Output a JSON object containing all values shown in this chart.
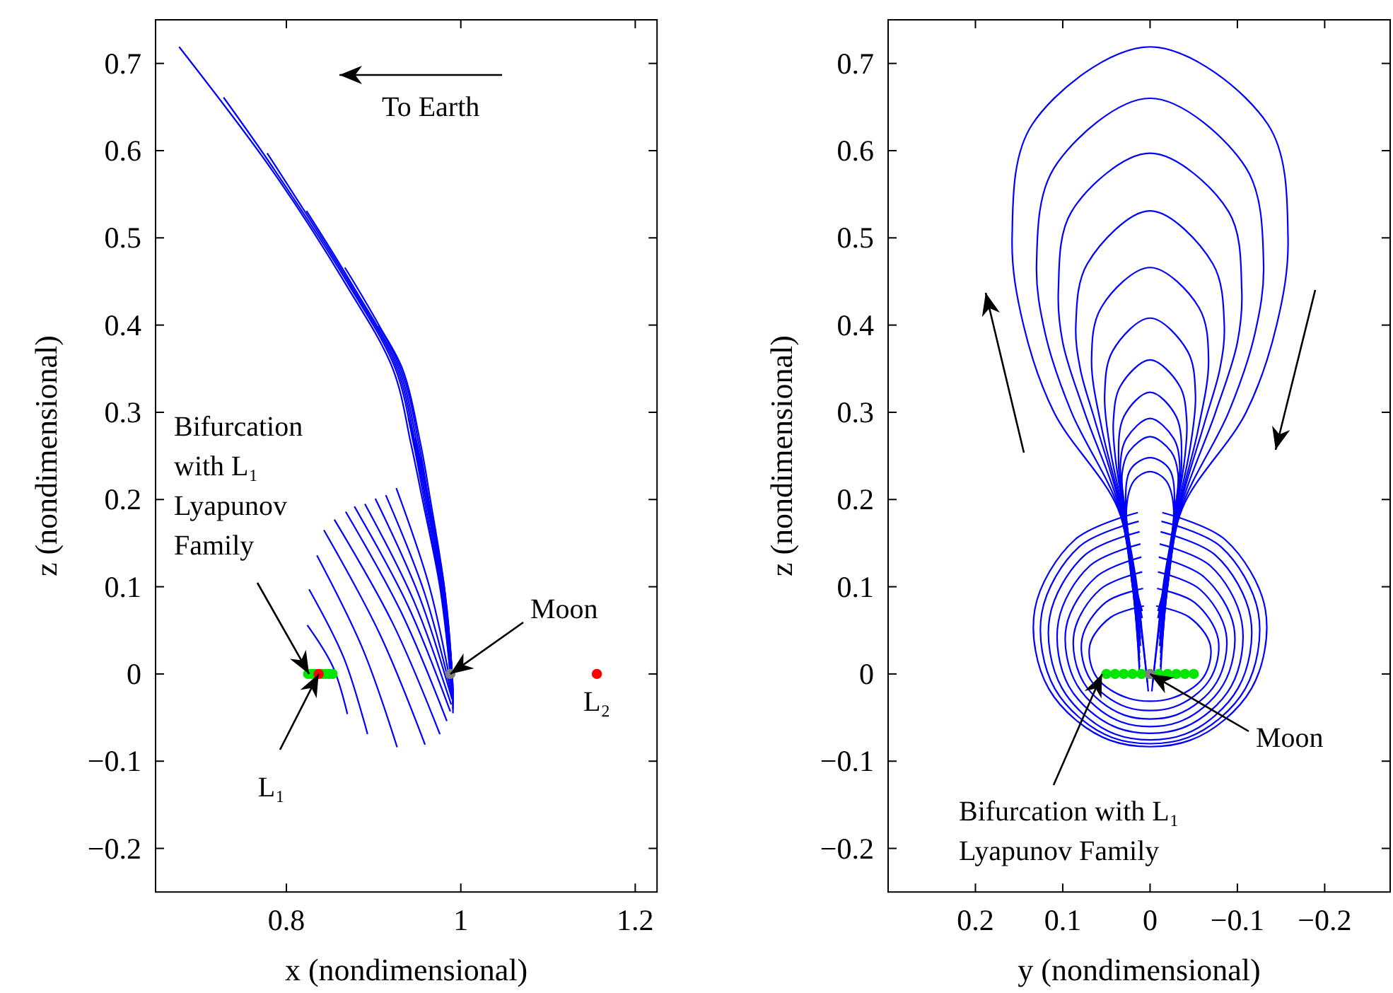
{
  "chart_data": [
    {
      "type": "line",
      "xlabel": "x (nondimensional)",
      "ylabel": "z (nondimensional)",
      "xlim": [
        0.65,
        1.225
      ],
      "ylim": [
        -0.25,
        0.75
      ],
      "xticks": [
        0.8,
        1,
        1.2
      ],
      "yticks": [
        -0.2,
        -0.1,
        0,
        0.1,
        0.2,
        0.3,
        0.4,
        0.5,
        0.6,
        0.7
      ],
      "annotations": [
        "To Earth",
        {
          "text": "Bifurcation with L₁ Lyapunov Family",
          "x": 0.826,
          "y": 0
        },
        {
          "text": "L₁",
          "x": 0.837,
          "y": 0
        },
        {
          "text": "Moon",
          "x": 0.988,
          "y": 0
        },
        {
          "text": "L₂",
          "x": 1.156,
          "y": 0
        }
      ],
      "series": [
        {
          "color": "#0000ff",
          "x": [
            0.677,
            0.784,
            0.868,
            0.922,
            0.943,
            0.956,
            0.976,
            0.988
          ],
          "values": [
            0.719,
            0.577,
            0.447,
            0.35,
            0.263,
            0.2,
            0.1,
            0
          ]
        },
        {
          "color": "#0000ff",
          "x": [
            0.728,
            0.787,
            0.871,
            0.925,
            0.946,
            0.958,
            0.977,
            0.988,
            0.989
          ],
          "values": [
            0.661,
            0.577,
            0.447,
            0.35,
            0.263,
            0.2,
            0.1,
            0,
            -0.01
          ]
        },
        {
          "color": "#0000ff",
          "x": [
            0.778,
            0.873,
            0.927,
            0.948,
            0.96,
            0.978,
            0.989,
            0.99
          ],
          "values": [
            0.597,
            0.447,
            0.35,
            0.263,
            0.2,
            0.1,
            0,
            -0.015
          ]
        },
        {
          "color": "#0000ff",
          "x": [
            0.823,
            0.875,
            0.929,
            0.95,
            0.962,
            0.979,
            0.989,
            0.99
          ],
          "values": [
            0.531,
            0.447,
            0.35,
            0.263,
            0.2,
            0.1,
            0,
            -0.02
          ]
        },
        {
          "color": "#0000ff",
          "x": [
            0.867,
            0.931,
            0.952,
            0.963,
            0.98,
            0.99,
            0.991
          ],
          "values": [
            0.466,
            0.35,
            0.263,
            0.2,
            0.1,
            0,
            -0.025
          ]
        },
        {
          "color": "#0000ff",
          "x": [
            0.906,
            0.933,
            0.954,
            0.965,
            0.981,
            0.99,
            0.991
          ],
          "values": [
            0.399,
            0.35,
            0.263,
            0.2,
            0.1,
            0,
            -0.03
          ]
        },
        {
          "color": "#0000ff",
          "x": [
            0.94,
            0.947,
            0.96,
            0.979,
            0.99,
            0.991
          ],
          "values": [
            0.293,
            0.263,
            0.2,
            0.1,
            0,
            -0.035
          ]
        },
        {
          "color": "#0000ff",
          "x": [
            0.948,
            0.962,
            0.98,
            0.99,
            0.991
          ],
          "values": [
            0.27,
            0.2,
            0.1,
            0,
            -0.04
          ]
        },
        {
          "color": "#0000ff",
          "x": [
            0.954,
            0.963,
            0.981,
            0.99,
            0.991
          ],
          "values": [
            0.248,
            0.2,
            0.1,
            0,
            -0.045
          ]
        },
        {
          "color": "#0000ff",
          "x": [
            0.824,
            0.853,
            0.87
          ],
          "values": [
            0.056,
            0.009,
            -0.046
          ]
        },
        {
          "color": "#0000ff",
          "x": [
            0.826,
            0.866,
            0.893
          ],
          "values": [
            0.097,
            0.018,
            -0.069
          ]
        },
        {
          "color": "#0000ff",
          "x": [
            0.835,
            0.887,
            0.927
          ],
          "values": [
            0.136,
            0.03,
            -0.084
          ]
        },
        {
          "color": "#0000ff",
          "x": [
            0.843,
            0.907,
            0.959
          ],
          "values": [
            0.165,
            0.046,
            -0.081
          ]
        },
        {
          "color": "#0000ff",
          "x": [
            0.855,
            0.922,
            0.976
          ],
          "values": [
            0.177,
            0.058,
            -0.069
          ]
        },
        {
          "color": "#0000ff",
          "x": [
            0.868,
            0.932,
            0.984
          ],
          "values": [
            0.186,
            0.07,
            -0.054
          ]
        },
        {
          "color": "#0000ff",
          "x": [
            0.878,
            0.939,
            0.988
          ],
          "values": [
            0.192,
            0.079,
            -0.043
          ]
        },
        {
          "color": "#0000ff",
          "x": [
            0.89,
            0.946,
            0.989
          ],
          "values": [
            0.195,
            0.084,
            -0.035
          ]
        },
        {
          "color": "#0000ff",
          "x": [
            0.902,
            0.952,
            0.99
          ],
          "values": [
            0.201,
            0.09,
            -0.029
          ]
        },
        {
          "color": "#0000ff",
          "x": [
            0.914,
            0.958,
            0.99
          ],
          "values": [
            0.205,
            0.094,
            -0.025
          ]
        },
        {
          "color": "#0000ff",
          "x": [
            0.926,
            0.964,
            0.99
          ],
          "values": [
            0.213,
            0.1,
            -0.02
          ]
        },
        {
          "type": "scatter",
          "marker": "circle",
          "color": "#00e600",
          "x": [
            0.825,
            0.829,
            0.833,
            0.841,
            0.845,
            0.849,
            0.853
          ],
          "values": [
            0,
            0,
            0,
            0,
            0,
            0,
            0
          ]
        },
        {
          "type": "scatter",
          "marker": "circle",
          "color": "#ff0000",
          "x": [
            0.837,
            1.156
          ],
          "values": [
            0,
            0
          ]
        },
        {
          "type": "scatter",
          "marker": "circle",
          "color": "#808080",
          "x": [
            0.988
          ],
          "values": [
            0
          ]
        }
      ]
    },
    {
      "type": "line",
      "xlabel": "y (nondimensional)",
      "ylabel": "z (nondimensional)",
      "xlim": [
        0.3,
        -0.275
      ],
      "ylim": [
        -0.25,
        0.75
      ],
      "xticks": [
        0.2,
        0.1,
        0,
        -0.1,
        -0.2
      ],
      "yticks": [
        -0.2,
        -0.1,
        0,
        0.1,
        0.2,
        0.3,
        0.4,
        0.5,
        0.6,
        0.7
      ],
      "annotations": [
        {
          "text": "Moon",
          "x": 0,
          "y": 0
        },
        {
          "text": "Bifurcation with L₁ Lyapunov Family",
          "x": 0.055,
          "y": 0
        }
      ],
      "series": [
        {
          "color": "#0000ff",
          "x": [
            0.012,
            0.02,
            0.037,
            0.11,
            0.145,
            0.158,
            0.135,
            0,
            -0.135,
            -0.158,
            -0.145,
            -0.11,
            -0.037,
            -0.02,
            -0.012
          ],
          "values": [
            0,
            0.1,
            0.19,
            0.3,
            0.4,
            0.5,
            0.63,
            0.719,
            0.63,
            0.5,
            0.4,
            0.3,
            0.19,
            0.1,
            0
          ]
        },
        {
          "color": "#0000ff",
          "x": [
            0.012,
            0.02,
            0.036,
            0.09,
            0.12,
            0.13,
            0.11,
            0,
            -0.11,
            -0.13,
            -0.12,
            -0.09,
            -0.036,
            -0.02,
            -0.012
          ],
          "values": [
            0.008,
            0.1,
            0.19,
            0.3,
            0.39,
            0.47,
            0.58,
            0.66,
            0.58,
            0.47,
            0.39,
            0.3,
            0.19,
            0.1,
            0.008
          ]
        },
        {
          "color": "#0000ff",
          "x": [
            0.012,
            0.02,
            0.035,
            0.075,
            0.1,
            0.105,
            0.09,
            0,
            -0.09,
            -0.105,
            -0.1,
            -0.075,
            -0.035,
            -0.02,
            -0.012
          ],
          "values": [
            0.016,
            0.1,
            0.19,
            0.3,
            0.38,
            0.44,
            0.53,
            0.597,
            0.53,
            0.44,
            0.38,
            0.3,
            0.19,
            0.1,
            0.016
          ]
        },
        {
          "color": "#0000ff",
          "x": [
            0.012,
            0.019,
            0.034,
            0.063,
            0.08,
            0.085,
            0.072,
            0,
            -0.072,
            -0.085,
            -0.08,
            -0.063,
            -0.034,
            -0.019,
            -0.012
          ],
          "values": [
            0.024,
            0.1,
            0.19,
            0.29,
            0.35,
            0.4,
            0.47,
            0.531,
            0.47,
            0.4,
            0.35,
            0.29,
            0.19,
            0.1,
            0.024
          ]
        },
        {
          "color": "#0000ff",
          "x": [
            0.011,
            0.018,
            0.033,
            0.055,
            0.067,
            0.056,
            0,
            -0.056,
            -0.067,
            -0.055,
            -0.033,
            -0.018,
            -0.011
          ],
          "values": [
            0.032,
            0.1,
            0.19,
            0.28,
            0.36,
            0.42,
            0.466,
            0.42,
            0.36,
            0.28,
            0.19,
            0.1,
            0.032
          ]
        },
        {
          "color": "#0000ff",
          "x": [
            0.011,
            0.018,
            0.032,
            0.046,
            0.052,
            0.043,
            0,
            -0.043,
            -0.052,
            -0.046,
            -0.032,
            -0.018,
            -0.011
          ],
          "values": [
            0.04,
            0.1,
            0.19,
            0.26,
            0.32,
            0.37,
            0.408,
            0.37,
            0.32,
            0.26,
            0.19,
            0.1,
            0.04
          ]
        },
        {
          "color": "#0000ff",
          "x": [
            0.01,
            0.017,
            0.031,
            0.04,
            0.042,
            0.034,
            0,
            -0.034,
            -0.042,
            -0.04,
            -0.031,
            -0.017,
            -0.01
          ],
          "values": [
            0.048,
            0.1,
            0.19,
            0.25,
            0.29,
            0.33,
            0.36,
            0.33,
            0.29,
            0.25,
            0.19,
            0.1,
            0.048
          ]
        },
        {
          "color": "#0000ff",
          "x": [
            0.01,
            0.017,
            0.03,
            0.036,
            0.03,
            0,
            -0.03,
            -0.036,
            -0.03,
            -0.017,
            -0.01
          ],
          "values": [
            0.056,
            0.1,
            0.19,
            0.24,
            0.295,
            0.323,
            0.295,
            0.24,
            0.19,
            0.1,
            0.056
          ]
        },
        {
          "color": "#0000ff",
          "x": [
            0.009,
            0.016,
            0.029,
            0.034,
            0.027,
            0,
            -0.027,
            -0.034,
            -0.029,
            -0.016,
            -0.009
          ],
          "values": [
            0.064,
            0.1,
            0.19,
            0.24,
            0.27,
            0.293,
            0.27,
            0.24,
            0.19,
            0.1,
            0.064
          ]
        },
        {
          "color": "#0000ff",
          "x": [
            0.009,
            0.016,
            0.029,
            0.032,
            0.024,
            0,
            -0.024,
            -0.032,
            -0.029,
            -0.016,
            -0.009
          ],
          "values": [
            0.072,
            0.1,
            0.19,
            0.23,
            0.255,
            0.272,
            0.255,
            0.23,
            0.19,
            0.1,
            0.072
          ]
        },
        {
          "color": "#0000ff",
          "x": [
            0.003,
            0.016,
            0.028,
            0.022,
            0,
            -0.022,
            -0.028,
            -0.016,
            -0.003
          ],
          "values": [
            -0.01,
            0.1,
            0.19,
            0.235,
            0.248,
            0.235,
            0.19,
            0.1,
            -0.01
          ]
        },
        {
          "color": "#0000ff",
          "x": [
            0.002,
            0.015,
            0.027,
            0.018,
            0,
            -0.018,
            -0.027,
            -0.015,
            -0.002
          ],
          "values": [
            -0.02,
            0.1,
            0.19,
            0.222,
            0.232,
            0.222,
            0.19,
            0.1,
            -0.02
          ]
        },
        {
          "color": "#0000ff",
          "x": [
            0.014,
            0.086,
            0.132,
            0.116,
            0.046,
            -0.046,
            -0.116,
            -0.132,
            -0.086,
            -0.014
          ],
          "values": [
            0.185,
            0.154,
            0.074,
            -0.017,
            -0.076,
            -0.076,
            -0.017,
            0.074,
            0.154,
            0.185
          ]
        },
        {
          "color": "#0000ff",
          "x": [
            0.013,
            0.081,
            0.124,
            0.109,
            0.043,
            -0.043,
            -0.109,
            -0.124,
            -0.081,
            -0.013
          ],
          "values": [
            0.175,
            0.146,
            0.07,
            -0.017,
            -0.073,
            -0.073,
            -0.017,
            0.07,
            0.146,
            0.175
          ]
        },
        {
          "color": "#0000ff",
          "x": [
            0.012,
            0.075,
            0.115,
            0.101,
            0.04,
            -0.04,
            -0.101,
            -0.115,
            -0.075,
            -0.012
          ],
          "values": [
            0.163,
            0.136,
            0.065,
            -0.016,
            -0.069,
            -0.069,
            -0.016,
            0.065,
            0.136,
            0.163
          ]
        },
        {
          "color": "#0000ff",
          "x": [
            0.011,
            0.069,
            0.105,
            0.093,
            0.037,
            -0.037,
            -0.093,
            -0.105,
            -0.069,
            -0.011
          ],
          "values": [
            0.149,
            0.124,
            0.06,
            -0.014,
            -0.062,
            -0.062,
            -0.014,
            0.06,
            0.124,
            0.149
          ]
        },
        {
          "color": "#0000ff",
          "x": [
            0.01,
            0.062,
            0.096,
            0.084,
            0.033,
            -0.033,
            -0.084,
            -0.096,
            -0.062,
            -0.01
          ],
          "values": [
            0.134,
            0.111,
            0.054,
            -0.012,
            -0.055,
            -0.055,
            -0.012,
            0.054,
            0.111,
            0.134
          ]
        },
        {
          "color": "#0000ff",
          "x": [
            0.009,
            0.057,
            0.087,
            0.076,
            0.03,
            -0.03,
            -0.076,
            -0.087,
            -0.057,
            -0.009
          ],
          "values": [
            0.117,
            0.097,
            0.047,
            -0.01,
            -0.047,
            -0.047,
            -0.01,
            0.047,
            0.097,
            0.117
          ]
        },
        {
          "color": "#0000ff",
          "x": [
            0.008,
            0.051,
            0.078,
            0.068,
            0.027,
            -0.027,
            -0.068,
            -0.078,
            -0.051,
            -0.008
          ],
          "values": [
            0.098,
            0.082,
            0.04,
            -0.007,
            -0.038,
            -0.038,
            -0.007,
            0.04,
            0.082,
            0.098
          ]
        },
        {
          "color": "#0000ff",
          "x": [
            0.007,
            0.045,
            0.069,
            0.061,
            0.024,
            -0.024,
            -0.061,
            -0.069,
            -0.045,
            -0.007
          ],
          "values": [
            0.078,
            0.065,
            0.033,
            -0.004,
            -0.028,
            -0.028,
            -0.004,
            0.033,
            0.065,
            0.078
          ]
        },
        {
          "type": "scatter",
          "marker": "circle",
          "color": "#00e600",
          "x": [
            0.05,
            0.04,
            0.03,
            0.02,
            0.01,
            0,
            -0.01,
            -0.02,
            -0.03,
            -0.04,
            -0.05
          ],
          "values": [
            0,
            0,
            0,
            0,
            0,
            0,
            0,
            0,
            0,
            0,
            0
          ]
        },
        {
          "type": "scatter",
          "marker": "circle",
          "color": "#808080",
          "x": [
            0
          ],
          "values": [
            0
          ]
        }
      ]
    }
  ]
}
